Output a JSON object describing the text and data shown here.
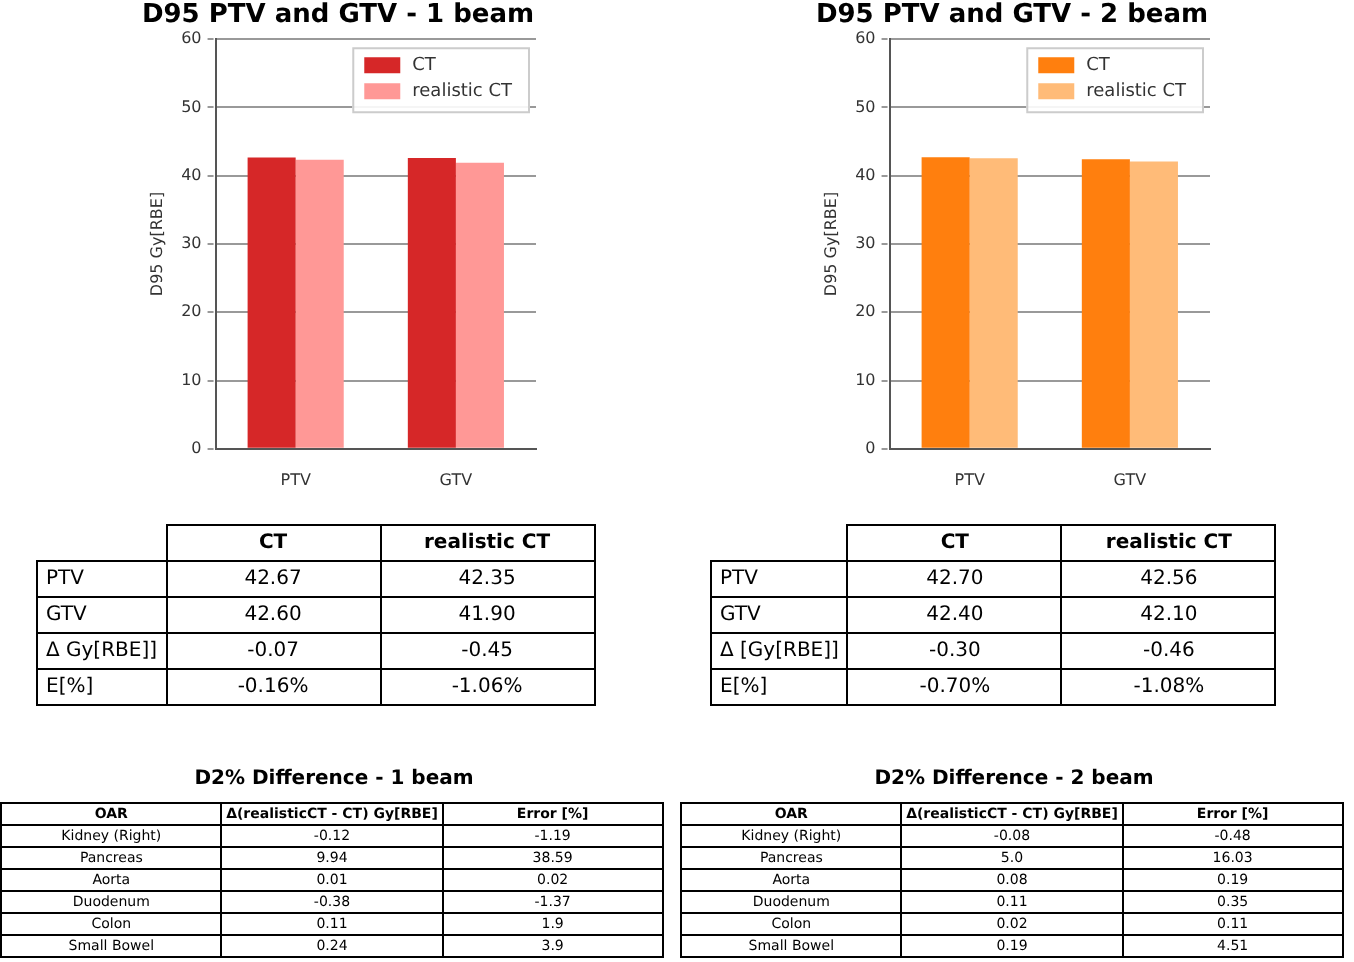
{
  "chart_data": [
    {
      "type": "bar",
      "title": "D95 PTV and GTV - 1 beam",
      "ylabel": "D95 Gy[RBE]",
      "categories": [
        "PTV",
        "GTV"
      ],
      "series": [
        {
          "name": "CT",
          "color": "#d62728",
          "values": [
            42.67,
            42.6
          ]
        },
        {
          "name": "realistic CT",
          "color": "#ff9896",
          "values": [
            42.35,
            41.9
          ]
        }
      ],
      "ylim": [
        0,
        60
      ],
      "yticks": [
        0,
        10,
        20,
        30,
        40,
        50,
        60
      ],
      "grid": "y",
      "legend": "top right",
      "annotations": [
        "PTV",
        "42.67",
        "42.35",
        "GTV",
        "42.60",
        "41.90",
        "Δ Gy[RBE]]",
        "-0.07",
        "-0.45",
        "E[%]",
        "-0.16%",
        "-1.06%"
      ]
    },
    {
      "type": "bar",
      "title": "D95 PTV and GTV - 2 beam",
      "ylabel": "D95 Gy[RBE]",
      "categories": [
        "PTV",
        "GTV"
      ],
      "series": [
        {
          "name": "CT",
          "color": "#ff7f0e",
          "values": [
            42.7,
            42.4
          ]
        },
        {
          "name": "realistic CT",
          "color": "#ffbb78",
          "values": [
            42.56,
            42.1
          ]
        }
      ],
      "ylim": [
        0,
        60
      ],
      "yticks": [
        0,
        10,
        20,
        30,
        40,
        50,
        60
      ],
      "grid": "y",
      "legend": "top right",
      "annotations": [
        "PTV",
        "42.70",
        "42.56",
        "GTV",
        "42.40",
        "42.10",
        "Δ [Gy[RBE]]",
        "-0.30",
        "-0.46",
        "E[%]",
        "-0.70%",
        "-1.08%"
      ]
    },
    {
      "type": "other",
      "title": "D2% Difference - 1 beam",
      "annotations": [
        "OAR",
        "Δ(realisticCT - CT) Gy[RBE]",
        "Error [%]",
        "Kidney (Right)",
        "-0.12",
        "-1.19",
        "Pancreas",
        "9.94",
        "38.59",
        "Aorta",
        "0.01",
        "0.02",
        "Duodenum",
        "-0.38",
        "-1.37",
        "Colon",
        "0.11",
        "1.9",
        "Small Bowel",
        "0.24",
        "3.9"
      ]
    },
    {
      "type": "other",
      "title": "D2% Difference - 2 beam",
      "annotations": [
        "OAR",
        "Δ(realisticCT - CT) Gy[RBE]",
        "Error [%]",
        "Kidney (Right)",
        "-0.08",
        "-0.48",
        "Pancreas",
        "5.0",
        "16.03",
        "Aorta",
        "0.08",
        "0.19",
        "Duodenum",
        "0.11",
        "0.35",
        "Colon",
        "0.02",
        "0.11",
        "Small Bowel",
        "0.19",
        "4.51"
      ]
    }
  ]
}
